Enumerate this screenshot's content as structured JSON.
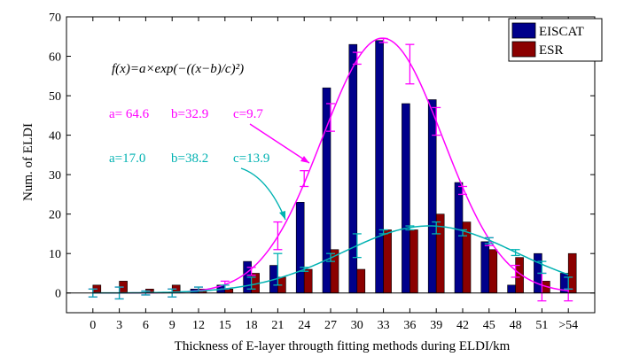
{
  "chart_data": {
    "type": "bar",
    "xlabel": "Thickness of E-layer througth fitting methods during ELDI/km",
    "ylabel": "Num. of ELDI",
    "ylim": [
      -5,
      70
    ],
    "yticks": [
      0,
      10,
      20,
      30,
      40,
      50,
      60,
      70
    ],
    "categories": [
      "0",
      "3",
      "6",
      "9",
      "12",
      "15",
      "18",
      "21",
      "24",
      "27",
      "30",
      "33",
      "36",
      "39",
      "42",
      "45",
      "48",
      "51",
      ">54"
    ],
    "grid": false,
    "legend_position": "top-right",
    "series": [
      {
        "name": "EISCAT",
        "color": "#00008b",
        "values": [
          0,
          0,
          0,
          0,
          1,
          2,
          8,
          7,
          23,
          52,
          63,
          64,
          48,
          49,
          28,
          13,
          2,
          10,
          5
        ]
      },
      {
        "name": "ESR",
        "color": "#8b0000",
        "values": [
          2,
          3,
          1,
          2,
          1,
          1,
          5,
          4,
          6,
          11,
          6,
          16,
          16,
          20,
          18,
          11,
          9,
          3,
          10
        ]
      }
    ],
    "fits": [
      {
        "for": "EISCAT",
        "color": "#ff00ff",
        "params": {
          "a": 64.6,
          "b": 32.9,
          "c": 9.7
        },
        "label": {
          "a": "a= 64.6",
          "b": "b=32.9",
          "c": "c=9.7"
        },
        "error_bars": [
          {
            "x": 0,
            "low": -1,
            "high": 1
          },
          {
            "x": 3,
            "low": -1.5,
            "high": 1.5
          },
          {
            "x": 6,
            "low": -0.5,
            "high": 0.5
          },
          {
            "x": 9,
            "low": -1,
            "high": 1
          },
          {
            "x": 12,
            "low": 0.5,
            "high": 1.5
          },
          {
            "x": 15,
            "low": 1,
            "high": 3
          },
          {
            "x": 18,
            "low": 4.5,
            "high": 6.5
          },
          {
            "x": 21,
            "low": 11,
            "high": 18
          },
          {
            "x": 24,
            "low": 27,
            "high": 31
          },
          {
            "x": 27,
            "low": 41,
            "high": 48
          },
          {
            "x": 30,
            "low": 58,
            "high": 61
          },
          {
            "x": 33,
            "low": 63.5,
            "high": 64.5
          },
          {
            "x": 36,
            "low": 53,
            "high": 63
          },
          {
            "x": 39,
            "low": 40,
            "high": 47
          },
          {
            "x": 42,
            "low": 25,
            "high": 27
          },
          {
            "x": 45,
            "low": 12,
            "high": 14
          },
          {
            "x": 48,
            "low": 4,
            "high": 7
          },
          {
            "x": 51,
            "low": -2,
            "high": 5
          },
          {
            "x": 54,
            "low": -2,
            "high": 1
          }
        ]
      },
      {
        "for": "ESR",
        "color": "#00b2b2",
        "params": {
          "a": 17.0,
          "b": 38.2,
          "c": 13.9
        },
        "label": {
          "a": "a=17.0",
          "b": "b=38.2",
          "c": "c=13.9"
        },
        "error_bars": [
          {
            "x": 0,
            "low": -1,
            "high": 1
          },
          {
            "x": 3,
            "low": -1.5,
            "high": 1.5
          },
          {
            "x": 6,
            "low": -0.5,
            "high": 0.5
          },
          {
            "x": 9,
            "low": -1,
            "high": 1
          },
          {
            "x": 12,
            "low": 0.5,
            "high": 1.5
          },
          {
            "x": 15,
            "low": 1,
            "high": 2
          },
          {
            "x": 18,
            "low": 1,
            "high": 4
          },
          {
            "x": 21,
            "low": 2,
            "high": 10
          },
          {
            "x": 24,
            "low": 5.5,
            "high": 6.5
          },
          {
            "x": 27,
            "low": 8,
            "high": 10
          },
          {
            "x": 30,
            "low": 9,
            "high": 15
          },
          {
            "x": 33,
            "low": 15,
            "high": 16
          },
          {
            "x": 36,
            "low": 16,
            "high": 17
          },
          {
            "x": 39,
            "low": 15,
            "high": 18
          },
          {
            "x": 42,
            "low": 14.5,
            "high": 16
          },
          {
            "x": 45,
            "low": 12.5,
            "high": 14
          },
          {
            "x": 48,
            "low": 9.5,
            "high": 11
          },
          {
            "x": 51,
            "low": 5,
            "high": 8
          },
          {
            "x": 54,
            "low": 1,
            "high": 4
          }
        ]
      }
    ],
    "annotations": {
      "formula": "f(x)=a×exp(−((x−b)/c)²)"
    }
  }
}
